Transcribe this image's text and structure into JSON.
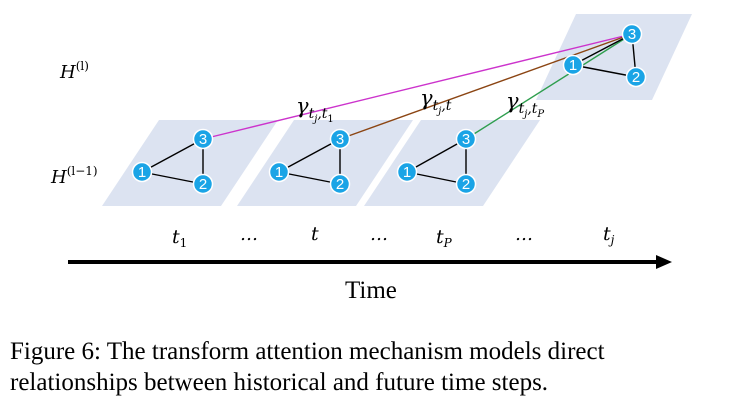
{
  "layers": {
    "upper": {
      "base": "H",
      "sup": "(l)"
    },
    "lower": {
      "base": "H",
      "sup": "(l−1)"
    }
  },
  "graphs": [
    {
      "time_label": {
        "base": "t",
        "sub": "1"
      },
      "nodes": [
        "1",
        "2",
        "3"
      ]
    },
    {
      "time_label": {
        "base": "t",
        "sub": ""
      },
      "nodes": [
        "1",
        "2",
        "3"
      ]
    },
    {
      "time_label": {
        "base": "t",
        "sub": "P"
      },
      "nodes": [
        "1",
        "2",
        "3"
      ]
    },
    {
      "time_label": {
        "base": "t",
        "sub": "j"
      },
      "nodes": [
        "1",
        "2",
        "3"
      ]
    }
  ],
  "ellipses": [
    "…",
    "…",
    "…"
  ],
  "gamma_labels": [
    {
      "base": "γ",
      "sub1": "t",
      "sub2": "j",
      "sub3": ",t",
      "sub4": "1"
    },
    {
      "base": "γ",
      "sub1": "t",
      "sub2": "j",
      "sub3": ",t",
      "sub4": ""
    },
    {
      "base": "γ",
      "sub1": "t",
      "sub2": "j",
      "sub3": ",t",
      "sub4": "P"
    }
  ],
  "time_axis_label": "Time",
  "caption": "Figure 6: The transform attention mechanism models direct relationships between historical and future time steps.",
  "colors": {
    "plane": "#dce3f1",
    "node": "#1aa4e6",
    "edge": "#000000",
    "attention_lines": [
      "#cc33cc",
      "#8b4513",
      "#2e9e4e"
    ]
  }
}
